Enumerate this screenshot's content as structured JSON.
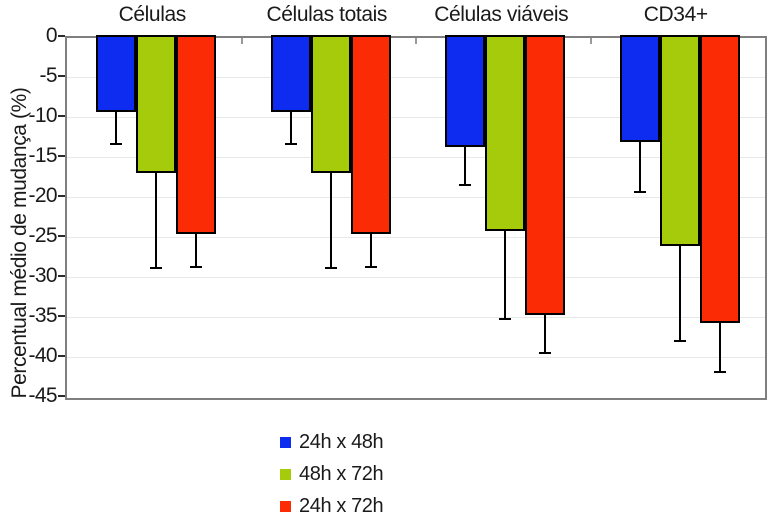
{
  "chart_data": {
    "type": "bar",
    "title": "",
    "ylabel": "Percentual médio de mudança (%)",
    "xlabel": "",
    "categories": [
      "Células",
      "Células totais",
      "Células viáveis",
      "CD34+"
    ],
    "series": [
      {
        "name": "24h x 48h",
        "color": "#0e2cf0",
        "values": [
          -9.4,
          -9.4,
          -13.8,
          -13.1
        ],
        "errors": [
          4.2,
          4.2,
          5.0,
          6.5
        ]
      },
      {
        "name": "48h x 72h",
        "color": "#a6cb0b",
        "values": [
          -17.0,
          -17.0,
          -24.2,
          -26.1
        ],
        "errors": [
          12.1,
          12.1,
          11.3,
          12.2
        ]
      },
      {
        "name": "24h x 72h",
        "color": "#fa2b05",
        "values": [
          -24.6,
          -24.6,
          -34.7,
          -35.8
        ],
        "errors": [
          4.4,
          4.4,
          5.1,
          6.3
        ]
      }
    ],
    "ylim": [
      -45,
      0
    ],
    "yticks": [
      0,
      -5,
      -10,
      -15,
      -20,
      -25,
      -30,
      -35,
      -40,
      -45
    ],
    "grid": true,
    "error_bars": "lower",
    "legend_position": "bottom-center",
    "colors": {
      "frame": "#7f7f7f",
      "gridline": "#e7e9e9",
      "bar_outline": "#000000",
      "text": "#1a1a1a"
    }
  }
}
